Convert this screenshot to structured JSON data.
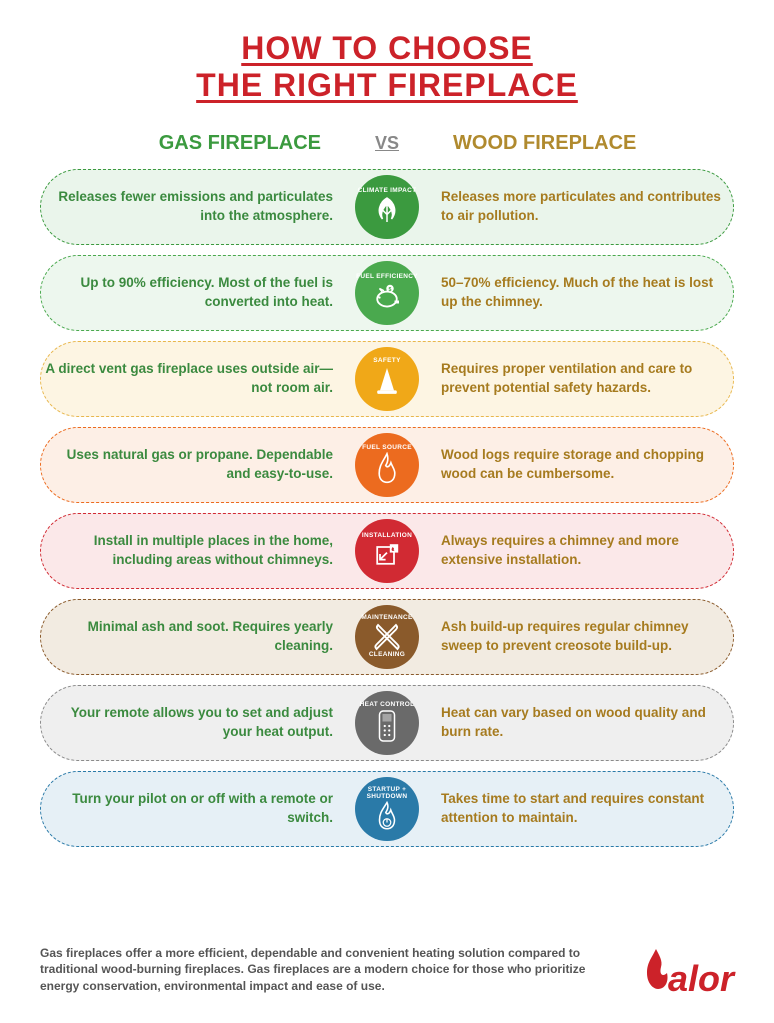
{
  "title_line1": "HOW TO CHOOSE",
  "title_line2": "THE RIGHT FIREPLACE",
  "header_gas": "GAS FIREPLACE",
  "header_vs": "VS",
  "header_wood": "WOOD FIREPLACE",
  "colors": {
    "title": "#cc2229",
    "gas_text": "#3b8a3f",
    "wood_text": "#a67b1f",
    "gas_header": "#3b9a3f",
    "wood_header": "#b08a2e"
  },
  "rows": [
    {
      "id": "climate",
      "badge_label": "CLIMATE IMPACT",
      "badge_color": "#3b9a3f",
      "row_bg": "#eaf5eb",
      "row_border": "#3b9a3f",
      "gas": "Releases fewer emissions and particulates into the atmosphere.",
      "wood": "Releases more particulates and contributes to air pollution."
    },
    {
      "id": "efficiency",
      "badge_label": "FUEL EFFICIENCY",
      "badge_color": "#4aa94e",
      "row_bg": "#edf7ee",
      "row_border": "#4aa94e",
      "gas": "Up to 90% efficiency. Most of the fuel is converted into heat.",
      "wood": "50–70% efficiency. Much of the heat is lost up the chimney."
    },
    {
      "id": "safety",
      "badge_label": "SAFETY",
      "badge_color": "#f0a818",
      "row_bg": "#fdf5e3",
      "row_border": "#e8b74d",
      "gas": "A direct vent gas fireplace uses outside air—not room air.",
      "wood": "Requires proper ventilation and care to prevent potential safety hazards."
    },
    {
      "id": "fuel",
      "badge_label": "FUEL SOURCE",
      "badge_color": "#ec6b1f",
      "row_bg": "#fdefe6",
      "row_border": "#ec6b1f",
      "gas": "Uses natural gas or propane. Dependable and easy-to-use.",
      "wood": "Wood logs require storage and chopping wood can be cumbersome."
    },
    {
      "id": "install",
      "badge_label": "INSTALLATION",
      "badge_color": "#d12a33",
      "row_bg": "#fbe8e9",
      "row_border": "#d12a33",
      "gas": "Install in multiple places in the home, including areas without chimneys.",
      "wood": "Always requires a chimney and more extensive installation."
    },
    {
      "id": "maintenance",
      "badge_label_top": "MAINTENANCE",
      "badge_label_bottom": "CLEANING",
      "badge_color": "#8a5a2b",
      "row_bg": "#f2ebe1",
      "row_border": "#8a5a2b",
      "gas": "Minimal ash and soot. Requires yearly cleaning.",
      "wood": "Ash build-up requires regular chimney sweep to prevent creosote build-up."
    },
    {
      "id": "heat",
      "badge_label": "HEAT CONTROL",
      "badge_color": "#6a6a6a",
      "row_bg": "#efefef",
      "row_border": "#8a8a8a",
      "gas": "Your remote allows you to set and adjust your heat output.",
      "wood": "Heat can vary based on wood quality and burn rate."
    },
    {
      "id": "startup",
      "badge_label": "STARTUP + SHUTDOWN",
      "badge_color": "#2a7aa8",
      "row_bg": "#e6f0f6",
      "row_border": "#2a7aa8",
      "gas": "Turn your pilot on or off with a remote or switch.",
      "wood": "Takes time to start and requires constant attention to maintain."
    }
  ],
  "footer": "Gas fireplaces offer a more efficient, dependable and convenient heating solution compared to traditional wood-burning fireplaces. Gas fireplaces are a modern choice for those who prioritize energy conservation, environmental impact and ease of use.",
  "logo_text": "alor"
}
